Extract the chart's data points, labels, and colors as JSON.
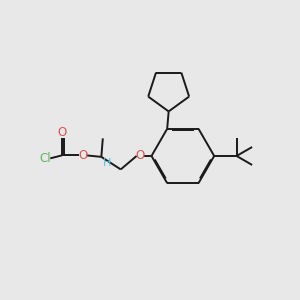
{
  "bg_color": "#e8e8e8",
  "bond_color": "#1a1a1a",
  "cl_color": "#5cb85c",
  "o_color": "#d9534f",
  "h_color": "#5bc0de",
  "bond_width": 1.4,
  "dbo": 0.035,
  "figsize": [
    3.0,
    3.0
  ],
  "dpi": 100,
  "xlim": [
    0.0,
    10.0
  ],
  "ylim": [
    0.5,
    9.5
  ]
}
